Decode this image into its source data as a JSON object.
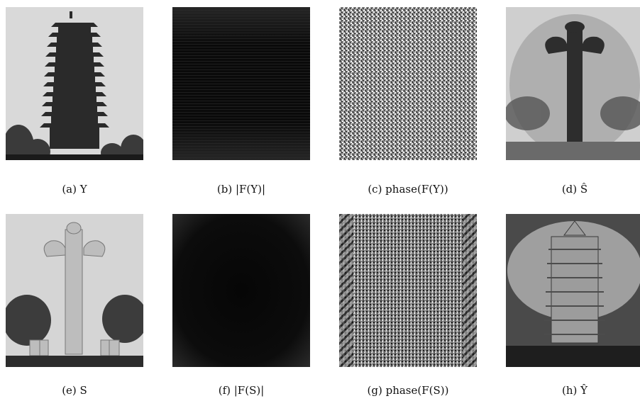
{
  "figure": {
    "panels": [
      {
        "id": "a",
        "caption": "(a)  Y",
        "content": "pagoda-photo",
        "image_type": "photo"
      },
      {
        "id": "b",
        "caption": "(b)  |F(Y)|",
        "content": "fourier-magnitude-Y",
        "image_type": "magnitude"
      },
      {
        "id": "c",
        "caption": "(c)  phase(F(Y))",
        "content": "fourier-phase-Y",
        "image_type": "phase"
      },
      {
        "id": "d",
        "caption": "(d)  Ŝ",
        "content": "reconstructed-pillar",
        "image_type": "recon"
      },
      {
        "id": "e",
        "caption": "(e)  S",
        "content": "pillar-photo",
        "image_type": "photo"
      },
      {
        "id": "f",
        "caption": "(f)  |F(S)|",
        "content": "fourier-magnitude-S",
        "image_type": "magnitude"
      },
      {
        "id": "g",
        "caption": "(g)  phase(F(S))",
        "content": "fourier-phase-S",
        "image_type": "phase"
      },
      {
        "id": "h",
        "caption": "(h)  Ŷ",
        "content": "reconstructed-pagoda",
        "image_type": "recon"
      }
    ]
  }
}
